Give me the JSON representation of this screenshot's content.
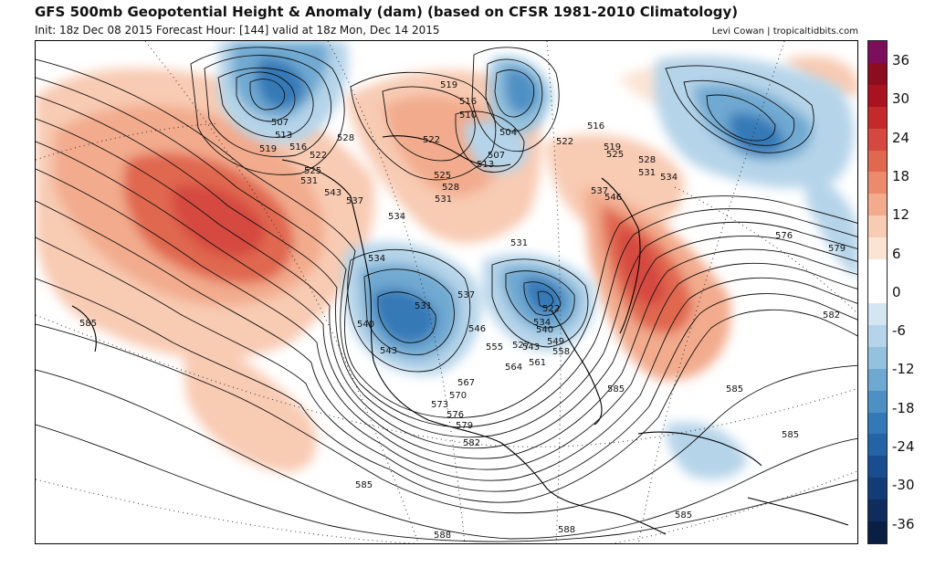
{
  "header": {
    "title": "GFS 500mb Geopotential Height & Anomaly (dam) (based on CFSR 1981-2010 Climatology)",
    "subtitle": "Init: 18z Dec 08 2015   Forecast Hour: [144]   valid at 18z Mon, Dec 14 2015",
    "credit": "Levi Cowan | tropicaltidbits.com"
  },
  "colorbar": {
    "ticks": [
      "36",
      "30",
      "24",
      "18",
      "12",
      "6",
      "0",
      "-6",
      "-12",
      "-18",
      "-24",
      "-30",
      "-36"
    ],
    "colors": [
      "#7b0f5c",
      "#8c0d1d",
      "#a8131f",
      "#c42a2c",
      "#d5483f",
      "#e0684f",
      "#eb8b6c",
      "#f2ab8d",
      "#f8cbb3",
      "#fce4d5",
      "#ffffff",
      "#ffffff",
      "#d3e6f1",
      "#b5d4e9",
      "#93c1de",
      "#6fa9d1",
      "#4f90c4",
      "#3479b7",
      "#2463a6",
      "#1a4d8f",
      "#133b76",
      "#0e2c5c",
      "#0a1f44"
    ]
  },
  "map": {
    "height_labels": [
      {
        "text": "507"
      },
      {
        "text": "513"
      },
      {
        "text": "516"
      },
      {
        "text": "519"
      },
      {
        "text": "522"
      },
      {
        "text": "525"
      },
      {
        "text": "531"
      },
      {
        "text": "543"
      },
      {
        "text": "537"
      },
      {
        "text": "528"
      },
      {
        "text": "519"
      },
      {
        "text": "516"
      },
      {
        "text": "510"
      },
      {
        "text": "522"
      },
      {
        "text": "525"
      },
      {
        "text": "528"
      },
      {
        "text": "531"
      },
      {
        "text": "504"
      },
      {
        "text": "507"
      },
      {
        "text": "513"
      },
      {
        "text": "522"
      },
      {
        "text": "516"
      },
      {
        "text": "519"
      },
      {
        "text": "525"
      },
      {
        "text": "528"
      },
      {
        "text": "531"
      },
      {
        "text": "534"
      },
      {
        "text": "537"
      },
      {
        "text": "546"
      },
      {
        "text": "534"
      },
      {
        "text": "531"
      },
      {
        "text": "576"
      },
      {
        "text": "579"
      },
      {
        "text": "582"
      },
      {
        "text": "534"
      },
      {
        "text": "531"
      },
      {
        "text": "537"
      },
      {
        "text": "540"
      },
      {
        "text": "543"
      },
      {
        "text": "546"
      },
      {
        "text": "522"
      },
      {
        "text": "534"
      },
      {
        "text": "540"
      },
      {
        "text": "543"
      },
      {
        "text": "555"
      },
      {
        "text": "527"
      },
      {
        "text": "549"
      },
      {
        "text": "558"
      },
      {
        "text": "561"
      },
      {
        "text": "564"
      },
      {
        "text": "567"
      },
      {
        "text": "570"
      },
      {
        "text": "573"
      },
      {
        "text": "576"
      },
      {
        "text": "579"
      },
      {
        "text": "582"
      },
      {
        "text": "585"
      },
      {
        "text": "585"
      },
      {
        "text": "585"
      },
      {
        "text": "585"
      },
      {
        "text": "585"
      },
      {
        "text": "585"
      },
      {
        "text": "588"
      },
      {
        "text": "588"
      }
    ]
  }
}
